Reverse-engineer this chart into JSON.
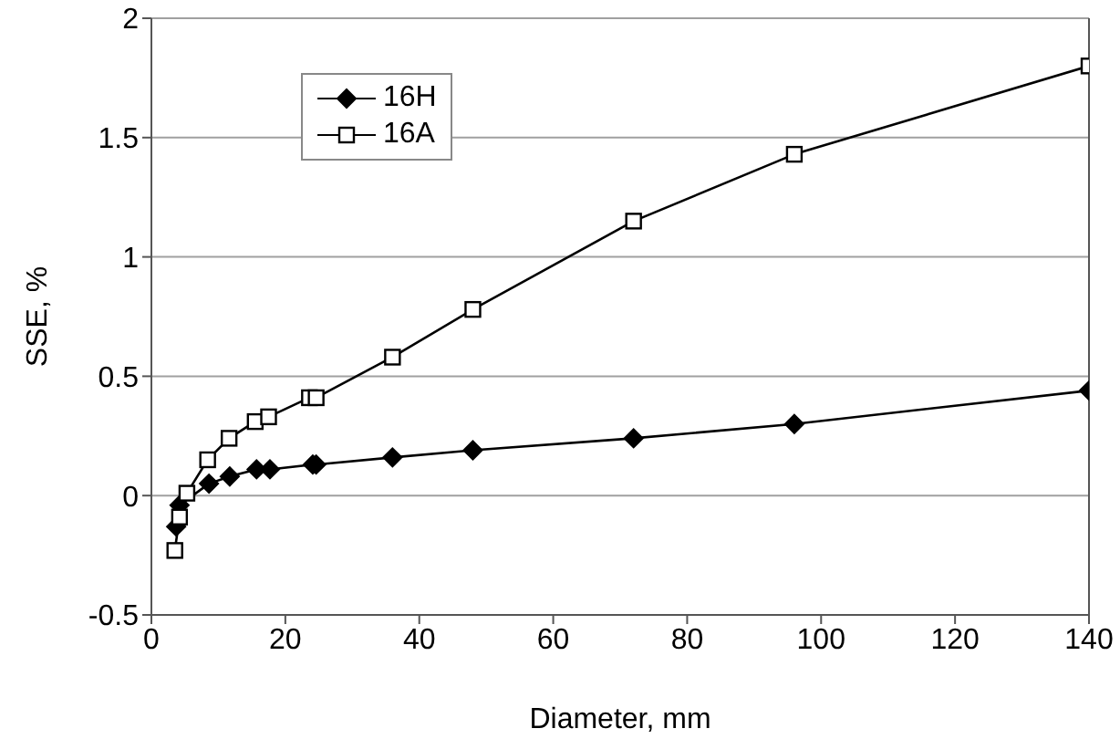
{
  "chart_data": {
    "type": "line",
    "xlabel": "Diameter, mm",
    "ylabel": "SSE, %",
    "series": [
      {
        "name": "16H",
        "color": "#000000",
        "marker": "diamond",
        "x": [
          3.7,
          4.2,
          8.6,
          11.7,
          15.7,
          17.7,
          24.1,
          24.6,
          36,
          48,
          72,
          96,
          140
        ],
        "values": [
          -0.13,
          -0.04,
          0.05,
          0.08,
          0.11,
          0.11,
          0.13,
          0.13,
          0.16,
          0.19,
          0.24,
          0.3,
          0.44
        ]
      },
      {
        "name": "16A",
        "color": "#000000",
        "marker": "square",
        "x": [
          3.5,
          4.2,
          5.3,
          8.4,
          11.6,
          15.5,
          17.5,
          23.6,
          24.6,
          36,
          48,
          72,
          96,
          140
        ],
        "values": [
          -0.23,
          -0.09,
          0.01,
          0.15,
          0.24,
          0.31,
          0.33,
          0.41,
          0.41,
          0.58,
          0.78,
          1.15,
          1.43,
          1.8
        ]
      }
    ],
    "xlim": [
      0,
      140
    ],
    "xticks": [
      0,
      20,
      40,
      60,
      80,
      100,
      120,
      140
    ],
    "ylim": [
      -0.5,
      2
    ],
    "yticks": [
      -0.5,
      0,
      0.5,
      1,
      1.5,
      2
    ],
    "grid": "y",
    "legend": "top left",
    "line_style": "solid"
  }
}
